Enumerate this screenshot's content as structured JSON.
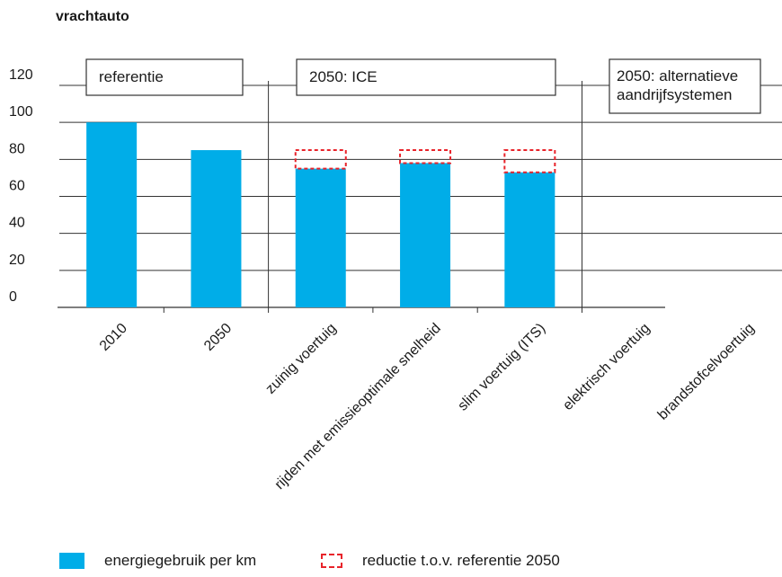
{
  "chart_data": {
    "type": "bar",
    "title": "vrachtauto",
    "categories": [
      "2010",
      "2050",
      "zuinig voertuig",
      "rijden met emissieoptimale snelheid",
      "slim voertuig (ITS)",
      "elektrisch voertuig",
      "brandstofcelvoertuig"
    ],
    "series": [
      {
        "name": "energiegebruik per km",
        "values": [
          100,
          85,
          75,
          78,
          73,
          null,
          null
        ]
      },
      {
        "name": "reductie t.o.v. referentie 2050",
        "values": [
          null,
          null,
          10,
          7,
          12,
          null,
          null
        ]
      }
    ],
    "yticks": [
      "0",
      "20",
      "40",
      "60",
      "80",
      "100",
      "120"
    ],
    "ylim": [
      0,
      120
    ],
    "groups": [
      {
        "label": "referentie"
      },
      {
        "label": "2050: ICE"
      },
      {
        "label": "2050: alternatieve aandrijfsystemen"
      }
    ],
    "legend_position": "bottom",
    "grid": true,
    "colors": {
      "bar": "#00ade8",
      "reduction": "#e8232a",
      "grid": "#333333"
    }
  }
}
